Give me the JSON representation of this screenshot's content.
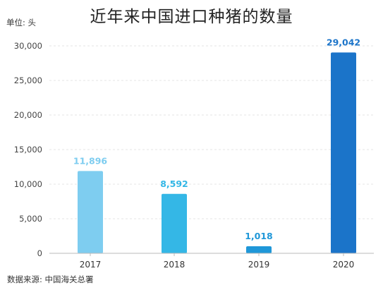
{
  "chart_data": {
    "type": "bar",
    "title": "近年来中国进口种猪的数量",
    "unit_label": "单位: 头",
    "source": "数据来源: 中国海关总署",
    "categories": [
      "2017",
      "2018",
      "2019",
      "2020"
    ],
    "values": [
      11896,
      8592,
      1018,
      29042
    ],
    "data_labels": [
      "11,896",
      "8,592",
      "1,018",
      "29,042"
    ],
    "bar_colors": [
      "#7ecdf0",
      "#34b7e6",
      "#1f97d8",
      "#1b74c9"
    ],
    "label_colors": [
      "#7ecdf0",
      "#34b7e6",
      "#1f97d8",
      "#1b74c9"
    ],
    "ylim": [
      0,
      30000
    ],
    "yticks": [
      0,
      5000,
      10000,
      15000,
      20000,
      25000,
      30000
    ],
    "ytick_labels": [
      "0",
      "5,000",
      "10,000",
      "15,000",
      "20,000",
      "25,000",
      "30,000"
    ],
    "grid": true,
    "grid_color": "#e6e6e6",
    "axis_color": "#bbbbbb"
  }
}
